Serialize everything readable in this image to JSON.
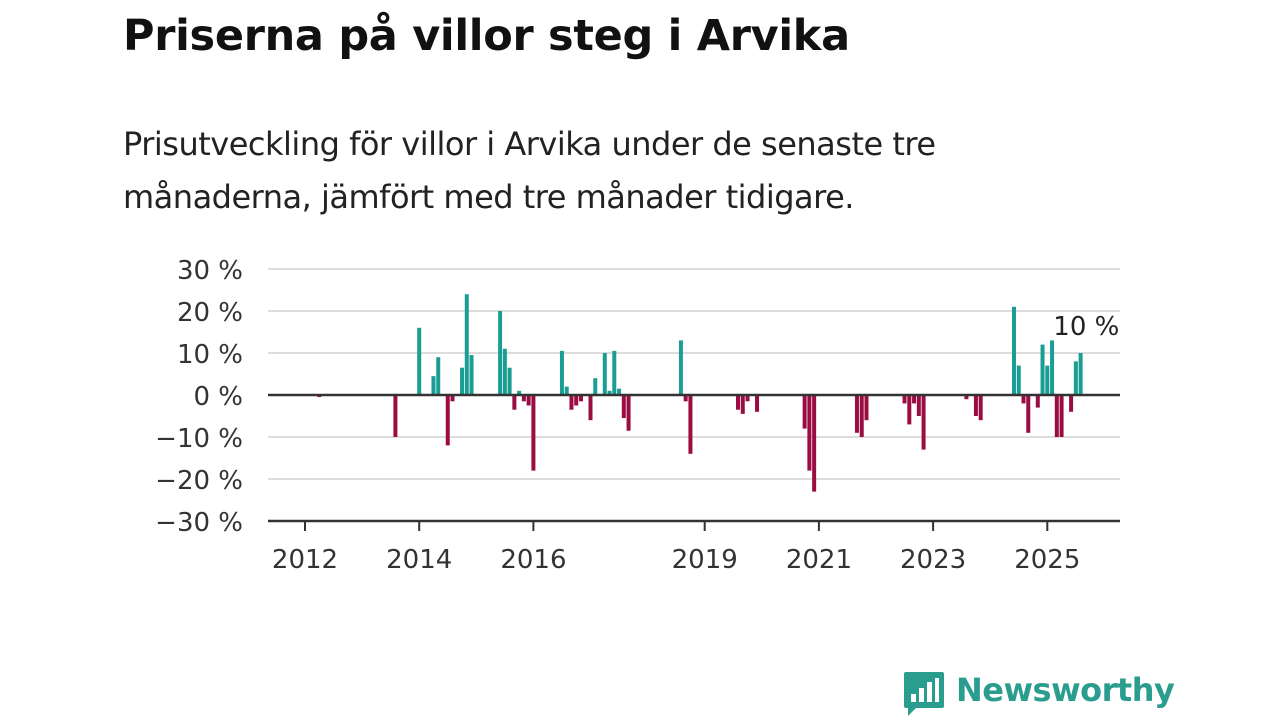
{
  "title": "Priserna på villor steg i Arvika",
  "subtitle": "Prisutveckling för villor i Arvika under de senaste tre månaderna, jämfört med tre månader tidigare.",
  "brand": {
    "name": "Newsworthy",
    "color": "#2a9d8f",
    "icon": "bar-chart-speech-bubble-icon"
  },
  "colors": {
    "positive": "#1a9e93",
    "negative": "#9b0c42",
    "grid": "#dddddd",
    "axis": "#333333",
    "text": "#333333"
  },
  "chart_data": {
    "type": "bar",
    "title": "",
    "xlabel": "",
    "ylabel": "",
    "ylim": [
      -30,
      30
    ],
    "y_ticks": [
      30,
      20,
      10,
      0,
      -10,
      -20,
      -30
    ],
    "y_tick_labels": [
      "30 %",
      "20 %",
      "10 %",
      "0 %",
      "−10 %",
      "−20 %",
      "−30 %"
    ],
    "x_ticks": [
      2012,
      2014,
      2016,
      2019,
      2021,
      2023,
      2025
    ],
    "x_tick_labels": [
      "2012",
      "2014",
      "2016",
      "2019",
      "2021",
      "2023",
      "2025"
    ],
    "xlim": [
      "2011-09",
      "2026-06"
    ],
    "grid": true,
    "annotation": {
      "label": "10 %",
      "date": "2025-09",
      "value": 10
    },
    "points": [
      {
        "date": "2012-04",
        "value": -0.5
      },
      {
        "date": "2013-08",
        "value": -10
      },
      {
        "date": "2014-01",
        "value": 16
      },
      {
        "date": "2014-04",
        "value": 4.5
      },
      {
        "date": "2014-05",
        "value": 9
      },
      {
        "date": "2014-07",
        "value": -12
      },
      {
        "date": "2014-08",
        "value": -1.5
      },
      {
        "date": "2014-10",
        "value": 6.5
      },
      {
        "date": "2014-11",
        "value": 24
      },
      {
        "date": "2014-12",
        "value": 9.5
      },
      {
        "date": "2015-06",
        "value": 20
      },
      {
        "date": "2015-07",
        "value": 11
      },
      {
        "date": "2015-08",
        "value": 6.5
      },
      {
        "date": "2015-09",
        "value": -3.5
      },
      {
        "date": "2015-10",
        "value": 1
      },
      {
        "date": "2015-11",
        "value": -1.5
      },
      {
        "date": "2015-12",
        "value": -2.5
      },
      {
        "date": "2016-01",
        "value": -18
      },
      {
        "date": "2016-07",
        "value": 10.5
      },
      {
        "date": "2016-08",
        "value": 2
      },
      {
        "date": "2016-09",
        "value": -3.5
      },
      {
        "date": "2016-10",
        "value": -2.5
      },
      {
        "date": "2016-11",
        "value": -1.5
      },
      {
        "date": "2017-01",
        "value": -6
      },
      {
        "date": "2017-02",
        "value": 4
      },
      {
        "date": "2017-04",
        "value": 10
      },
      {
        "date": "2017-05",
        "value": 1
      },
      {
        "date": "2017-06",
        "value": 10.5
      },
      {
        "date": "2017-07",
        "value": 1.5
      },
      {
        "date": "2017-08",
        "value": -5.5
      },
      {
        "date": "2017-09",
        "value": -8.5
      },
      {
        "date": "2018-08",
        "value": 13
      },
      {
        "date": "2018-09",
        "value": -1.5
      },
      {
        "date": "2018-10",
        "value": -14
      },
      {
        "date": "2019-08",
        "value": -3.5
      },
      {
        "date": "2019-09",
        "value": -4.5
      },
      {
        "date": "2019-10",
        "value": -1.5
      },
      {
        "date": "2019-12",
        "value": -4
      },
      {
        "date": "2020-10",
        "value": -8
      },
      {
        "date": "2020-11",
        "value": -18
      },
      {
        "date": "2020-12",
        "value": -23
      },
      {
        "date": "2021-09",
        "value": -9
      },
      {
        "date": "2021-10",
        "value": -10
      },
      {
        "date": "2021-11",
        "value": -6
      },
      {
        "date": "2022-07",
        "value": -2
      },
      {
        "date": "2022-08",
        "value": -7
      },
      {
        "date": "2022-09",
        "value": -2
      },
      {
        "date": "2022-10",
        "value": -5
      },
      {
        "date": "2022-11",
        "value": -13
      },
      {
        "date": "2023-08",
        "value": -1
      },
      {
        "date": "2023-10",
        "value": -5
      },
      {
        "date": "2023-11",
        "value": -6
      },
      {
        "date": "2024-06",
        "value": 21
      },
      {
        "date": "2024-07",
        "value": 7
      },
      {
        "date": "2024-08",
        "value": -2
      },
      {
        "date": "2024-09",
        "value": -9
      },
      {
        "date": "2024-11",
        "value": -3
      },
      {
        "date": "2024-12",
        "value": 12
      },
      {
        "date": "2025-01",
        "value": 7
      },
      {
        "date": "2025-02",
        "value": 13
      },
      {
        "date": "2025-03",
        "value": -10
      },
      {
        "date": "2025-04",
        "value": -10
      },
      {
        "date": "2025-06",
        "value": -4
      },
      {
        "date": "2025-07",
        "value": 8
      },
      {
        "date": "2025-08",
        "value": 10
      }
    ]
  }
}
